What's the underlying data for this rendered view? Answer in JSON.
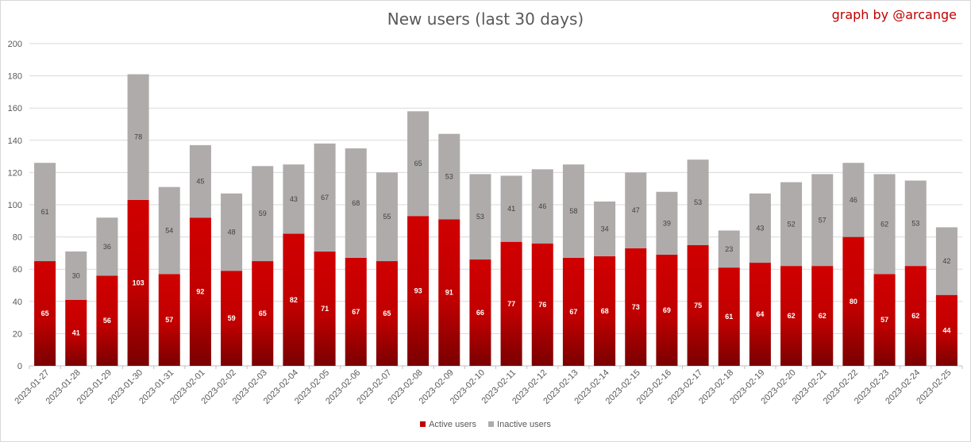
{
  "credit": "graph by @arcange",
  "chart_data": {
    "type": "bar",
    "stacked": true,
    "title": "New users (last 30 days)",
    "xlabel": "",
    "ylabel": "",
    "ylim": [
      0,
      200
    ],
    "yticks": [
      0,
      20,
      40,
      60,
      80,
      100,
      120,
      140,
      160,
      180,
      200
    ],
    "grid": true,
    "legend_position": "bottom",
    "categories": [
      "2023-01-27",
      "2023-01-28",
      "2023-01-29",
      "2023-01-30",
      "2023-01-31",
      "2023-02-01",
      "2023-02-02",
      "2023-02-03",
      "2023-02-04",
      "2023-02-05",
      "2023-02-06",
      "2023-02-07",
      "2023-02-08",
      "2023-02-09",
      "2023-02-10",
      "2023-02-11",
      "2023-02-12",
      "2023-02-13",
      "2023-02-14",
      "2023-02-15",
      "2023-02-16",
      "2023-02-17",
      "2023-02-18",
      "2023-02-19",
      "2023-02-20",
      "2023-02-21",
      "2023-02-22",
      "2023-02-23",
      "2023-02-24",
      "2023-02-25"
    ],
    "series": [
      {
        "name": "Active users",
        "color": "#c00000",
        "values": [
          65,
          41,
          56,
          103,
          57,
          92,
          59,
          65,
          82,
          71,
          67,
          65,
          93,
          91,
          66,
          77,
          76,
          67,
          68,
          73,
          69,
          75,
          61,
          64,
          62,
          62,
          80,
          57,
          62,
          44
        ]
      },
      {
        "name": "Inactive users",
        "color": "#afabab",
        "values": [
          61,
          30,
          36,
          78,
          54,
          45,
          48,
          59,
          43,
          67,
          68,
          55,
          65,
          53,
          53,
          41,
          46,
          58,
          34,
          47,
          39,
          53,
          23,
          43,
          52,
          57,
          46,
          62,
          53,
          42
        ]
      }
    ]
  }
}
